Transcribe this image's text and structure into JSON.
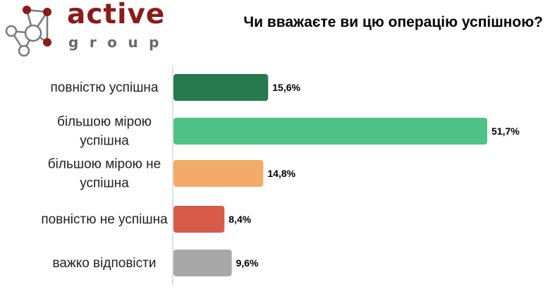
{
  "logo": {
    "name": "active",
    "sub": "group"
  },
  "chart_data": {
    "type": "bar",
    "orientation": "horizontal",
    "title": "Чи вважаєте ви цю операцію успішною?",
    "categories": [
      [
        "повністю успішна"
      ],
      [
        "більшою мірою",
        "успішна"
      ],
      [
        "більшою мірою не",
        "успішна"
      ],
      [
        "повністю не успішна"
      ],
      [
        "важко відповісти"
      ]
    ],
    "values": [
      15.6,
      51.7,
      14.8,
      8.4,
      9.6
    ],
    "value_labels": [
      "15,6%",
      "51,7%",
      "14,8%",
      "8,4%",
      "9,6%"
    ],
    "colors": [
      "#267a4d",
      "#4fc286",
      "#f2ab68",
      "#d85a49",
      "#a8a8a8"
    ],
    "xlim": [
      0,
      51.7
    ],
    "grid": false,
    "legend": "none"
  }
}
